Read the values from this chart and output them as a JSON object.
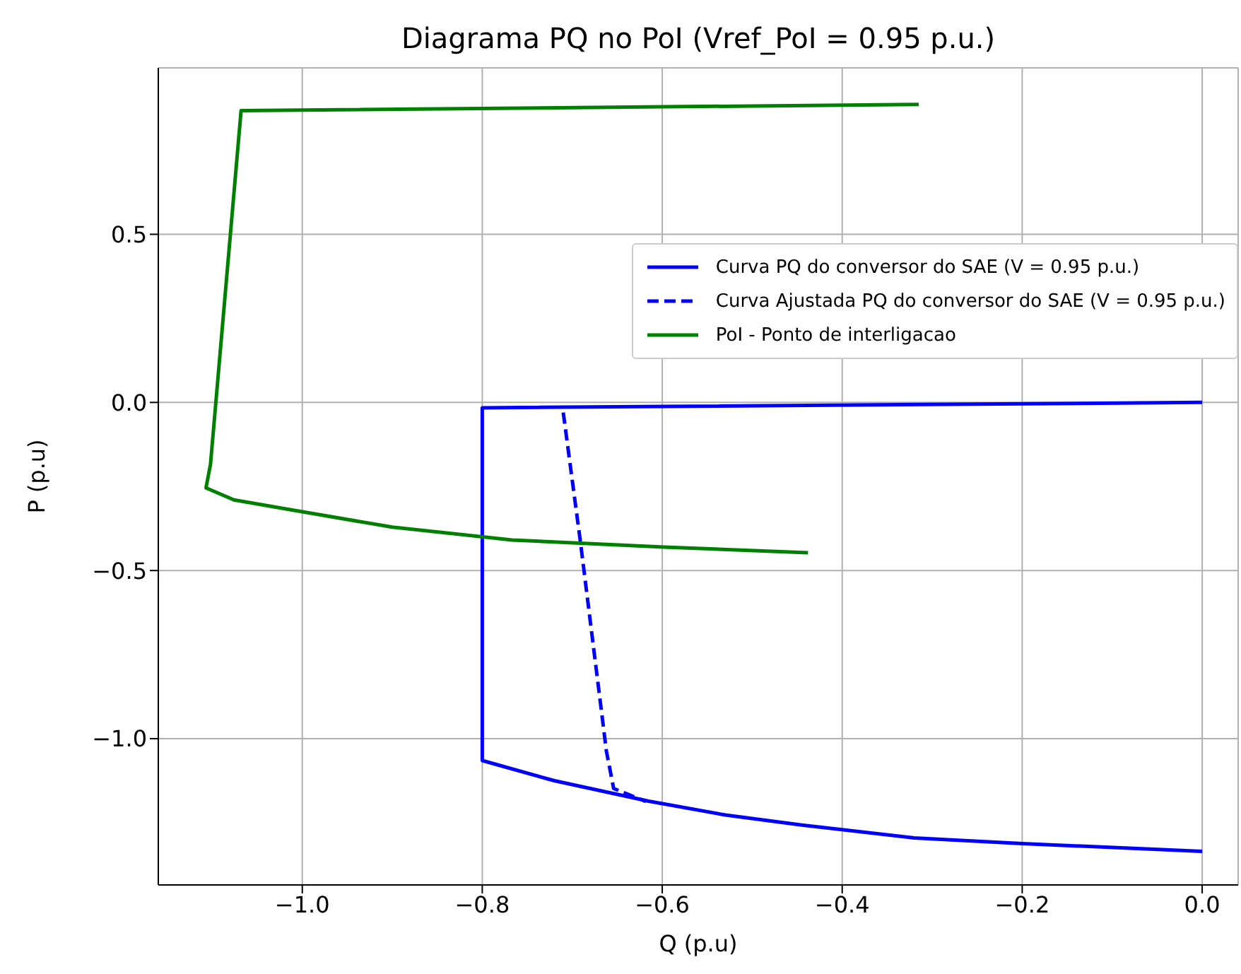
{
  "chart_data": {
    "type": "line",
    "title": "Diagrama PQ no PoI (Vref_PoI = 0.95 p.u.)",
    "xlabel": "Q (p.u)",
    "ylabel": "P (p.u)",
    "series": [
      {
        "name": "Curva PQ do conversor do SAE (V = 0.95 p.u.)",
        "color": "#0000ff",
        "line_style": "solid",
        "x": [
          0.0,
          -0.8,
          -0.8,
          -0.72,
          -0.615,
          -0.53,
          -0.445,
          -0.32,
          -0.2,
          0.0
        ],
        "values": [
          0.0,
          -0.016,
          -1.065,
          -1.125,
          -1.186,
          -1.227,
          -1.257,
          -1.295,
          -1.312,
          -1.335
        ]
      },
      {
        "name": "Curva Ajustada PQ do conversor do SAE (V = 0.95 p.u.)",
        "color": "#0000ff",
        "line_style": "dashed",
        "x": [
          -0.71,
          -0.691,
          -0.662,
          -0.654,
          -0.618
        ],
        "values": [
          -0.03,
          -0.413,
          -1.038,
          -1.148,
          -1.187
        ]
      },
      {
        "name": "PoI - Ponto de interligacao",
        "color": "#008000",
        "line_style": "solid",
        "x": [
          -0.315,
          -1.068,
          -1.102,
          -1.107,
          -1.076,
          -1.0,
          -0.9,
          -0.767,
          -0.598,
          -0.438
        ],
        "values": [
          0.886,
          0.868,
          -0.184,
          -0.254,
          -0.29,
          -0.325,
          -0.371,
          -0.409,
          -0.43,
          -0.447
        ]
      }
    ],
    "xlim": [
      -1.16,
      0.04
    ],
    "ylim": [
      -1.435,
      0.995
    ],
    "xticks": [
      {
        "value": -1.0,
        "label": "−1.0"
      },
      {
        "value": -0.8,
        "label": "−0.8"
      },
      {
        "value": -0.6,
        "label": "−0.6"
      },
      {
        "value": -0.4,
        "label": "−0.4"
      },
      {
        "value": -0.2,
        "label": "−0.2"
      },
      {
        "value": 0.0,
        "label": "0.0"
      }
    ],
    "yticks": [
      {
        "value": -1.0,
        "label": "−1.0"
      },
      {
        "value": -0.5,
        "label": "−0.5"
      },
      {
        "value": 0.0,
        "label": "0.0"
      },
      {
        "value": 0.5,
        "label": "0.5"
      }
    ],
    "grid": true,
    "legend": "top right",
    "marker": "none"
  }
}
